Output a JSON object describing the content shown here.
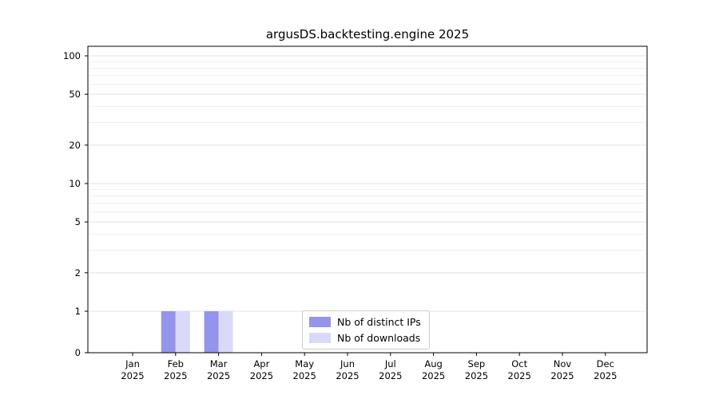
{
  "chart_data": {
    "type": "bar",
    "title": "argusDS.backtesting.engine 2025",
    "yscale": "symlog",
    "grid": true,
    "legend_position": "lower center",
    "ylim": [
      0,
      120
    ],
    "yticks": [
      0,
      1,
      2,
      5,
      10,
      20,
      50,
      100
    ],
    "x_tick_labels": [
      [
        "Jan",
        "2025"
      ],
      [
        "Feb",
        "2025"
      ],
      [
        "Mar",
        "2025"
      ],
      [
        "Apr",
        "2025"
      ],
      [
        "May",
        "2025"
      ],
      [
        "Jun",
        "2025"
      ],
      [
        "Jul",
        "2025"
      ],
      [
        "Aug",
        "2025"
      ],
      [
        "Sep",
        "2025"
      ],
      [
        "Oct",
        "2025"
      ],
      [
        "Nov",
        "2025"
      ],
      [
        "Dec",
        "2025"
      ]
    ],
    "categories": [
      "Jan 2025",
      "Feb 2025",
      "Mar 2025",
      "Apr 2025",
      "May 2025",
      "Jun 2025",
      "Jul 2025",
      "Aug 2025",
      "Sep 2025",
      "Oct 2025",
      "Nov 2025",
      "Dec 2025"
    ],
    "series": [
      {
        "name": "Nb of distinct IPs",
        "color": "#9494ec",
        "values": [
          0,
          1,
          1,
          0,
          0,
          0,
          0,
          0,
          0,
          0,
          0,
          0
        ]
      },
      {
        "name": "Nb of downloads",
        "color": "#d9d9f8",
        "values": [
          0,
          1,
          1,
          0,
          0,
          0,
          0,
          0,
          0,
          0,
          0,
          0
        ]
      }
    ]
  },
  "colors": {
    "axis": "#000000",
    "grid_minor": "#efefef",
    "grid_major": "#e3e3e3",
    "background": "#ffffff"
  }
}
